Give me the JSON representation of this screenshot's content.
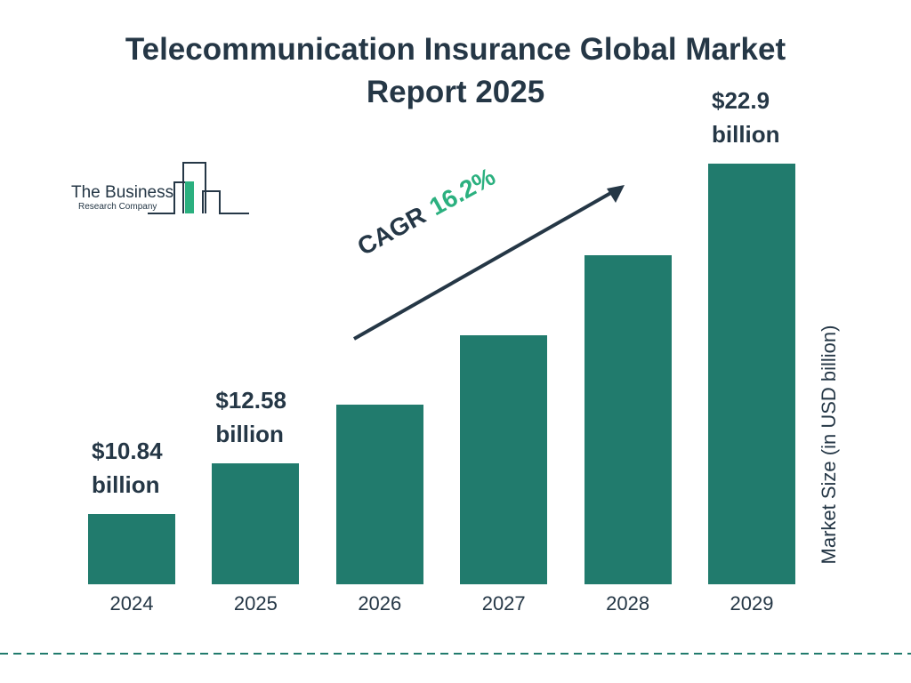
{
  "chart_data": {
    "type": "bar",
    "title": "Telecommunication Insurance Global Market Report 2025",
    "categories": [
      "2024",
      "2025",
      "2026",
      "2027",
      "2028",
      "2029"
    ],
    "values": [
      10.84,
      12.58,
      14.62,
      16.99,
      19.74,
      22.9
    ],
    "value_labels": [
      "$10.84 billion",
      "$12.58 billion",
      null,
      null,
      null,
      "$22.9 billion"
    ],
    "color": "#217b6d",
    "y_axis_label": "Market Size (in USD billion)",
    "annotation": {
      "label": "CAGR",
      "value": "16.2%"
    },
    "logo": {
      "line1": "The Business",
      "line2": "Research Company"
    }
  }
}
